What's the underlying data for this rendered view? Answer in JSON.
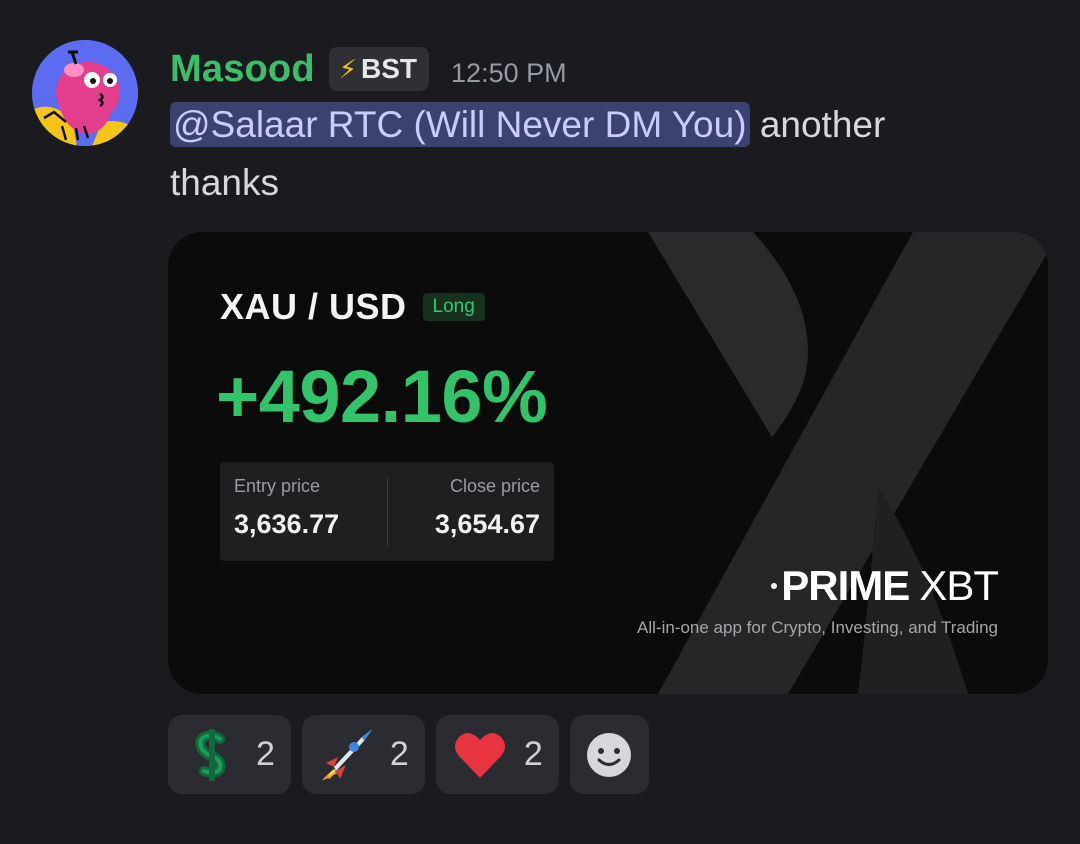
{
  "message": {
    "author": "Masood",
    "tag": {
      "icon": "lightning-icon",
      "text": "BST"
    },
    "timestamp": "12:50 PM",
    "mention": "@Salaar RTC (Will Never DM You)",
    "text_after": "another thanks",
    "colors": {
      "author": "#3bbf6b",
      "mention_bg": "#3c4270",
      "background": "#1b1b1f"
    }
  },
  "embed": {
    "pair": "XAU / USD",
    "side": "Long",
    "pnl": "+492.16%",
    "entry_label": "Entry price",
    "entry_value": "3,636.77",
    "close_label": "Close price",
    "close_value": "3,654.67",
    "brand_prime": "PRIME",
    "brand_xbt": "XBT",
    "tagline": "All-in-one app for Crypto, Investing, and Trading",
    "colors": {
      "pnl": "#33c46b",
      "card": "#0b0b0c"
    }
  },
  "reactions": [
    {
      "emoji": "heavy-dollar-sign-icon",
      "count": "2"
    },
    {
      "emoji": "rocket-icon",
      "count": "2"
    },
    {
      "emoji": "red-heart-icon",
      "count": "2"
    }
  ],
  "add_reaction": {
    "icon": "smiley-face-icon"
  }
}
